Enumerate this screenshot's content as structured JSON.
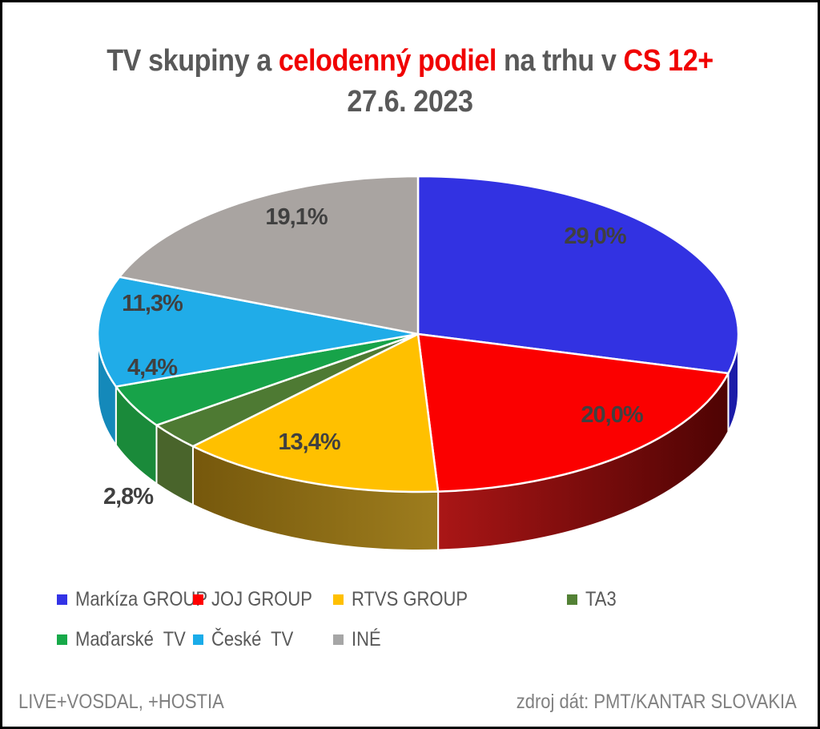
{
  "title": {
    "part1": "TV skupiny a ",
    "part2": "celodenný podiel",
    "part3": " na trhu v ",
    "part4": "CS 12+",
    "subtitle": "27.6. 2023"
  },
  "chart_data": {
    "type": "pie",
    "style": "3d",
    "title": "TV skupiny a celodenný podiel na trhu v CS 12+",
    "subtitle": "27.6. 2023",
    "unit": "%",
    "start_angle_deg": 0,
    "direction": "clockwise",
    "legend_position": "bottom",
    "label_color": "#404040",
    "slices": [
      {
        "name": "Markíza GROUP",
        "value": 29.0,
        "label": "29,0%",
        "color": "#3232E2",
        "side_color": "#1B1BA8"
      },
      {
        "name": "JOJ GROUP",
        "value": 20.0,
        "label": "20,0%",
        "color": "#FB0000",
        "side_gradient": [
          "#AA1616",
          "#4E0303"
        ]
      },
      {
        "name": "RTVS GROUP",
        "value": 13.4,
        "label": "13,4%",
        "color": "#FFC000",
        "side_gradient": [
          "#76580C",
          "#9E7D1E"
        ]
      },
      {
        "name": "TA3",
        "value": 2.8,
        "label": "2,8%",
        "color": "#4E7A33",
        "side_color": "#49642B"
      },
      {
        "name": "Maďarské  TV",
        "value": 4.4,
        "label": "4,4%",
        "color": "#17A349",
        "side_color": "#1A8A3A"
      },
      {
        "name": "České  TV",
        "value": 11.3,
        "label": "11,3%",
        "color": "#20ACE8",
        "side_color": "#1489BA"
      },
      {
        "name": "INÉ",
        "value": 19.1,
        "label": "19,1%",
        "color": "#A9A4A1",
        "side_color": "#7E7A77"
      }
    ]
  },
  "legend": {
    "items": [
      {
        "label": "Markíza GROUP",
        "color": "#3333E6"
      },
      {
        "label": "JOJ GROUP",
        "color": "#FF0000"
      },
      {
        "label": "RTVS GROUP",
        "color": "#FFC000"
      },
      {
        "label": "TA3",
        "color": "#538135"
      },
      {
        "label": "Maďarské  TV",
        "color": "#17A949"
      },
      {
        "label": "České  TV",
        "color": "#1AACE9"
      },
      {
        "label": "INÉ",
        "color": "#A6A6A6"
      }
    ]
  },
  "footer": {
    "left": "LIVE+VOSDAL, +HOSTIA",
    "right": "zdroj dát: PMT/KANTAR SLOVAKIA"
  }
}
